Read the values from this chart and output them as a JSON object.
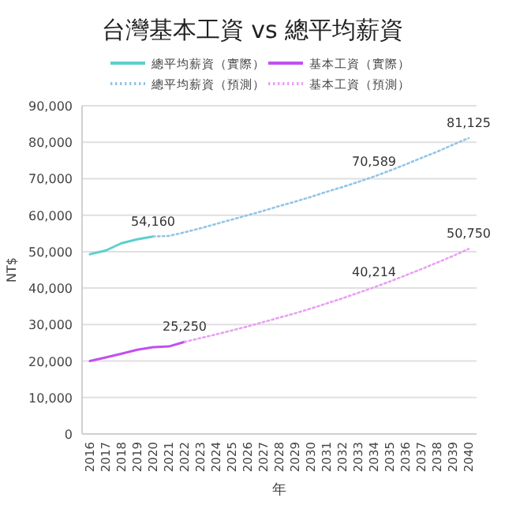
{
  "chart_data": {
    "type": "line",
    "title": "台灣基本工資 vs 總平均薪資",
    "xlabel": "年",
    "ylabel": "NT$",
    "categories": [
      "2016",
      "2017",
      "2018",
      "2019",
      "2020",
      "2021",
      "2022",
      "2023",
      "2024",
      "2025",
      "2026",
      "2027",
      "2028",
      "2029",
      "2030",
      "2031",
      "2032",
      "2033",
      "2034",
      "2035",
      "2036",
      "2037",
      "2038",
      "2039",
      "2040"
    ],
    "ylim": [
      0,
      90000
    ],
    "yticks": [
      {
        "value": 0,
        "label": "0"
      },
      {
        "value": 10000,
        "label": "10,000"
      },
      {
        "value": 20000,
        "label": "20,000"
      },
      {
        "value": 30000,
        "label": "30,000"
      },
      {
        "value": 40000,
        "label": "40,000"
      },
      {
        "value": 50000,
        "label": "50,000"
      },
      {
        "value": 60000,
        "label": "60,000"
      },
      {
        "value": 70000,
        "label": "70,000"
      },
      {
        "value": 80000,
        "label": "80,000"
      },
      {
        "value": 90000,
        "label": "90,000"
      }
    ],
    "grid": "y",
    "legend": "top",
    "marker": "none",
    "series": [
      {
        "name": "總平均薪資（實際）",
        "color": "#5bd0cc",
        "line_style": "solid",
        "values": [
          49300,
          50300,
          52300,
          53400,
          54160,
          null,
          null,
          null,
          null,
          null,
          null,
          null,
          null,
          null,
          null,
          null,
          null,
          null,
          null,
          null,
          null,
          null,
          null,
          null,
          null
        ],
        "value_labels": [
          null,
          null,
          null,
          null,
          "54,160",
          null,
          null,
          null,
          null,
          null,
          null,
          null,
          null,
          null,
          null,
          null,
          null,
          null,
          null,
          null,
          null,
          null,
          null,
          null,
          null
        ]
      },
      {
        "name": "基本工資（實際）",
        "color": "#c050f0",
        "line_style": "solid",
        "values": [
          20000,
          21000,
          22000,
          23100,
          23800,
          24000,
          25250,
          null,
          null,
          null,
          null,
          null,
          null,
          null,
          null,
          null,
          null,
          null,
          null,
          null,
          null,
          null,
          null,
          null,
          null
        ],
        "value_labels": [
          null,
          null,
          null,
          null,
          null,
          null,
          "25,250",
          null,
          null,
          null,
          null,
          null,
          null,
          null,
          null,
          null,
          null,
          null,
          null,
          null,
          null,
          null,
          null,
          null,
          null
        ]
      },
      {
        "name": "總平均薪資（預測）",
        "color": "#92c5e8",
        "line_style": "dotted",
        "values": [
          null,
          null,
          null,
          null,
          54160,
          54300,
          55300,
          56400,
          57600,
          58800,
          60000,
          61200,
          62500,
          63700,
          65000,
          66400,
          67700,
          69100,
          70589,
          72200,
          73900,
          75700,
          77400,
          79300,
          81125
        ],
        "value_labels": [
          null,
          null,
          null,
          null,
          null,
          null,
          null,
          null,
          null,
          null,
          null,
          null,
          null,
          null,
          null,
          null,
          null,
          null,
          "70,589",
          null,
          null,
          null,
          null,
          null,
          "81,125"
        ]
      },
      {
        "name": "基本工資（預測）",
        "color": "#e8a0f4",
        "line_style": "dotted",
        "values": [
          null,
          null,
          null,
          null,
          null,
          null,
          25250,
          26300,
          27300,
          28400,
          29500,
          30700,
          31900,
          33100,
          34400,
          35800,
          37200,
          38700,
          40214,
          41800,
          43500,
          45200,
          47000,
          48800,
          50750
        ],
        "value_labels": [
          null,
          null,
          null,
          null,
          null,
          null,
          null,
          null,
          null,
          null,
          null,
          null,
          null,
          null,
          null,
          null,
          null,
          null,
          "40,214",
          null,
          null,
          null,
          null,
          null,
          "50,750"
        ]
      }
    ]
  }
}
